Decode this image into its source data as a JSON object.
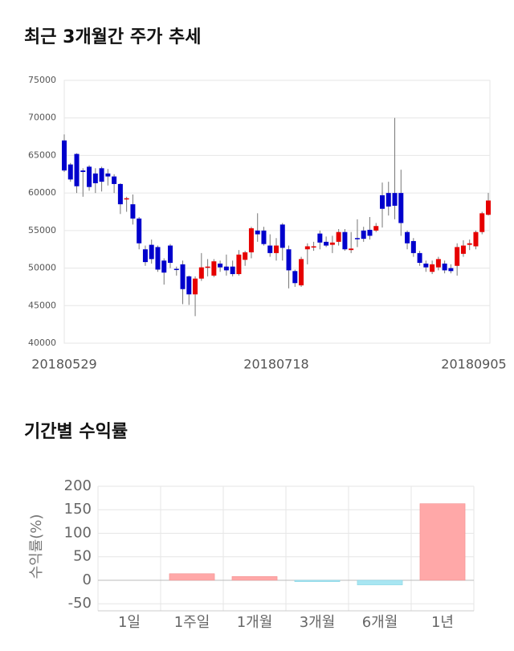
{
  "chart_data": [
    {
      "type": "candlestick",
      "title": "최근 3개월간 주가 추세",
      "categories": [
        "20180529",
        null,
        null,
        null,
        null,
        null,
        null,
        null,
        null,
        null,
        null,
        null,
        null,
        null,
        null,
        null,
        null,
        null,
        null,
        null,
        null,
        null,
        null,
        null,
        null,
        null,
        null,
        null,
        null,
        null,
        null,
        null,
        null,
        null,
        "20180718",
        null,
        null,
        null,
        null,
        null,
        null,
        null,
        null,
        null,
        null,
        null,
        null,
        null,
        null,
        null,
        null,
        null,
        null,
        null,
        null,
        null,
        null,
        null,
        null,
        null,
        null,
        null,
        null,
        null,
        null,
        null,
        null,
        null,
        "20180905"
      ],
      "open": [
        67000,
        63800,
        65200,
        63000,
        63500,
        62600,
        63300,
        62600,
        62200,
        61200,
        59200,
        58500,
        56600,
        52500,
        53100,
        52800,
        51000,
        53000,
        49900,
        50500,
        48900,
        46500,
        48600,
        50100,
        49000,
        50600,
        50200,
        50200,
        49200,
        51100,
        52100,
        55000,
        55000,
        53000,
        52000,
        55800,
        52500,
        49600,
        47700,
        52500,
        52800,
        54600,
        53500,
        53100,
        53500,
        54800,
        52400,
        54000,
        55000,
        55100,
        55000,
        59700,
        60000,
        60000,
        60000,
        54800,
        53600,
        52000,
        50600,
        49500,
        50100,
        50600,
        50000,
        50300,
        51900,
        53100,
        52900,
        54800,
        57100
      ],
      "high": [
        67800,
        64000,
        65300,
        63300,
        63700,
        63300,
        63500,
        63200,
        62500,
        61300,
        59500,
        59800,
        56800,
        53000,
        53800,
        53000,
        51300,
        53200,
        50200,
        51000,
        49000,
        48900,
        52000,
        51200,
        51200,
        51000,
        51800,
        51000,
        52400,
        52300,
        55500,
        57300,
        55500,
        54500,
        54000,
        56000,
        53000,
        49800,
        51500,
        53300,
        53500,
        55000,
        54200,
        54300,
        55200,
        55200,
        54800,
        56500,
        55500,
        56800,
        56000,
        61400,
        61500,
        70000,
        63100,
        55000,
        54000,
        52300,
        51000,
        51000,
        51500,
        51000,
        50500,
        53300,
        53700,
        53800,
        55000,
        57500,
        60000
      ],
      "low": [
        62800,
        61500,
        60000,
        59500,
        60300,
        60000,
        60200,
        61000,
        60000,
        57200,
        57500,
        55800,
        52500,
        50300,
        50600,
        49500,
        47800,
        50000,
        49000,
        45200,
        45100,
        43600,
        48300,
        48900,
        48800,
        49500,
        49000,
        48900,
        49000,
        50300,
        51300,
        53500,
        53000,
        51500,
        51000,
        51000,
        47300,
        47500,
        47500,
        50500,
        52300,
        52500,
        52800,
        52000,
        53000,
        52300,
        52000,
        52800,
        53500,
        53800,
        54800,
        55400,
        57000,
        56500,
        54300,
        52500,
        51500,
        50300,
        49500,
        49200,
        49700,
        49300,
        49300,
        49000,
        51500,
        52400,
        52500,
        54500,
        57000
      ],
      "close": [
        63000,
        61800,
        60900,
        62800,
        60800,
        61300,
        61500,
        62200,
        61200,
        58500,
        59300,
        56600,
        53300,
        50800,
        51200,
        49800,
        49400,
        50700,
        49800,
        47200,
        46500,
        48600,
        50100,
        50200,
        50900,
        50100,
        49700,
        49200,
        51800,
        52100,
        55300,
        54500,
        53200,
        52000,
        53000,
        52700,
        49700,
        48000,
        51200,
        52900,
        52900,
        53400,
        53000,
        53400,
        54800,
        52500,
        52600,
        53900,
        53900,
        54300,
        55600,
        57900,
        58200,
        58300,
        56000,
        53300,
        52000,
        50700,
        50100,
        50500,
        51200,
        49700,
        49600,
        52800,
        53000,
        53300,
        54800,
        57300,
        59000
      ],
      "up_color": "#e60000",
      "down_color": "#0000cc",
      "ylim": [
        40000,
        75000
      ],
      "yticks": [
        40000,
        45000,
        50000,
        55000,
        60000,
        65000,
        70000,
        75000
      ],
      "grid": true
    },
    {
      "type": "bar",
      "title": "기간별 수익률",
      "y_label": "수익률(%)",
      "categories": [
        "1일",
        "1주일",
        "1개월",
        "3개월",
        "6개월",
        "1년"
      ],
      "values": [
        0,
        14,
        8,
        -3,
        -10,
        163
      ],
      "positive_color": "#ffa8a8",
      "negative_color": "#a8e6f2",
      "ylim": [
        -65,
        200
      ],
      "yticks": [
        -50,
        0,
        50,
        100,
        150,
        200
      ],
      "grid": true
    }
  ]
}
